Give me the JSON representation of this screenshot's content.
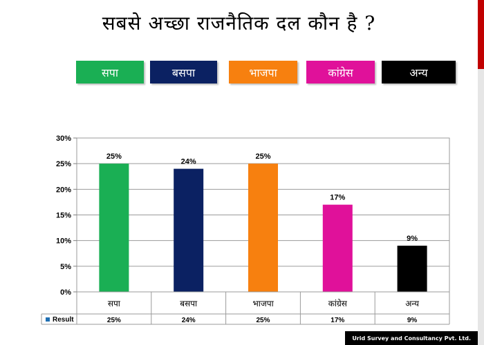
{
  "title": "सबसे अच्छा राजनैतिक दल कौन है ?",
  "legend": [
    {
      "label": "सपा",
      "color": "#1aaf54"
    },
    {
      "label": "बसपा",
      "color": "#0b2162"
    },
    {
      "label": "भाजपा",
      "color": "#f7800f"
    },
    {
      "label": "कांग्रेस",
      "color": "#e0119a"
    },
    {
      "label": "अन्य",
      "color": "#000000"
    }
  ],
  "chart_data": {
    "type": "bar",
    "categories": [
      "सपा",
      "बसपा",
      "भाजपा",
      "कांग्रेस",
      "अन्य"
    ],
    "series": [
      {
        "name": "Result",
        "values": [
          25,
          24,
          25,
          17,
          9
        ],
        "colors": [
          "#1aaf54",
          "#0b2162",
          "#f7800f",
          "#e0119a",
          "#000000"
        ]
      }
    ],
    "data_labels": [
      "25%",
      "24%",
      "25%",
      "17%",
      "9%"
    ],
    "table_values": [
      "25%",
      "24%",
      "25%",
      "17%",
      "9%"
    ],
    "y_ticks": [
      "0%",
      "5%",
      "10%",
      "15%",
      "20%",
      "25%",
      "30%"
    ],
    "ylim": [
      0,
      30
    ],
    "grid": true,
    "legend_series_label": "Result",
    "legend_marker_color": "#1f6fb2"
  },
  "footer": "Urid Survey and Consultancy Pvt. Ltd."
}
